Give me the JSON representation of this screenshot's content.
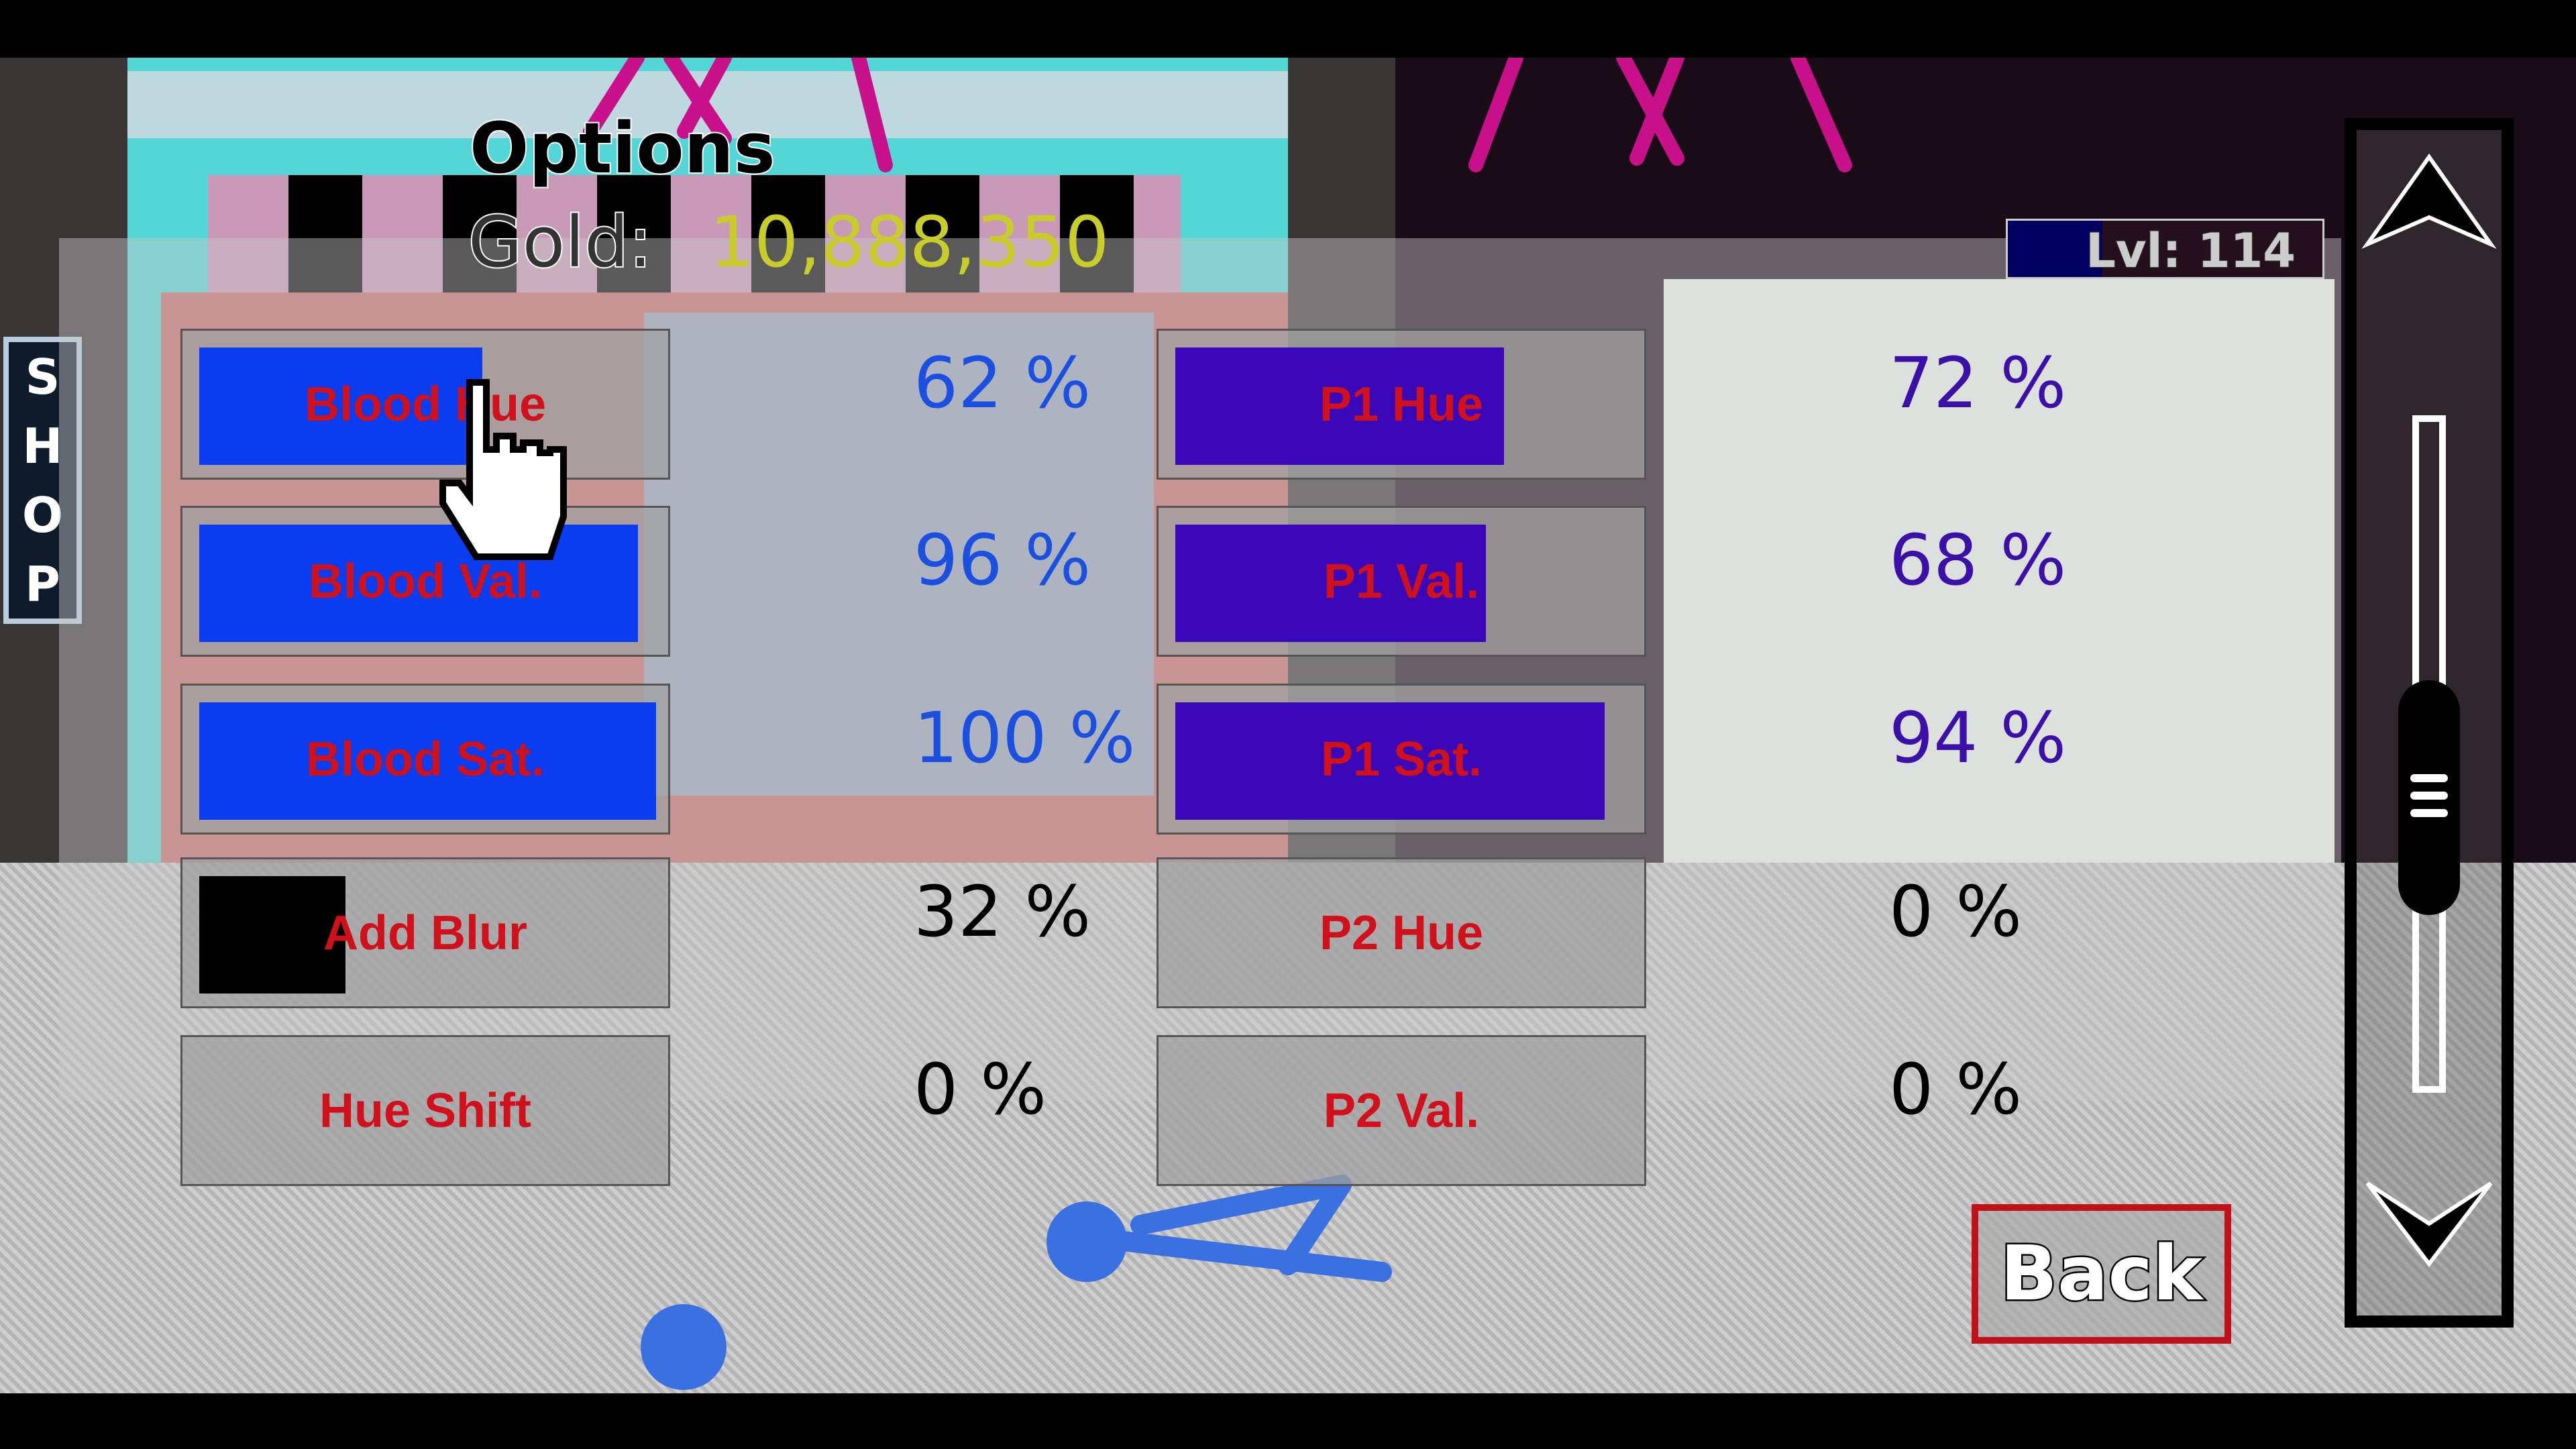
{
  "header": {
    "title": "Options",
    "gold_label": "Gold:",
    "gold_value": "10,888,350",
    "level": "Lvl: 114",
    "level_progress": 0.3
  },
  "shop_sign": [
    "S",
    "H",
    "O",
    "P"
  ],
  "left_sliders": [
    {
      "label": "Blood Hue",
      "value": 62,
      "value_text": "62 %",
      "fill_color": "#0a3cf0",
      "value_color": "#1a4fe0"
    },
    {
      "label": "Blood Val.",
      "value": 96,
      "value_text": "96 %",
      "fill_color": "#0a3cf0",
      "value_color": "#1a4fe0"
    },
    {
      "label": "Blood Sat.",
      "value": 100,
      "value_text": "100 %",
      "fill_color": "#0a3cf0",
      "value_color": "#1a4fe0"
    },
    {
      "label": "Add Blur",
      "value": 32,
      "value_text": "32 %",
      "fill_color": "#000000",
      "value_color": "#000000"
    },
    {
      "label": "Hue Shift",
      "value": 0,
      "value_text": "0 %",
      "fill_color": "#000000",
      "value_color": "#000000"
    }
  ],
  "right_sliders": [
    {
      "label": "P1 Hue",
      "value": 72,
      "value_text": "72 %",
      "fill_color": "#3a08b8",
      "value_color": "#3a10a8"
    },
    {
      "label": "P1 Val.",
      "value": 68,
      "value_text": "68 %",
      "fill_color": "#3a08b8",
      "value_color": "#3a10a8"
    },
    {
      "label": "P1 Sat.",
      "value": 94,
      "value_text": "94 %",
      "fill_color": "#3a08b8",
      "value_color": "#3a10a8"
    },
    {
      "label": "P2 Hue",
      "value": 0,
      "value_text": "0 %",
      "fill_color": "#000000",
      "value_color": "#000000"
    },
    {
      "label": "P2 Val.",
      "value": 0,
      "value_text": "0 %",
      "fill_color": "#000000",
      "value_color": "#000000"
    }
  ],
  "back_label": "Back",
  "scroll_position": 0.6
}
